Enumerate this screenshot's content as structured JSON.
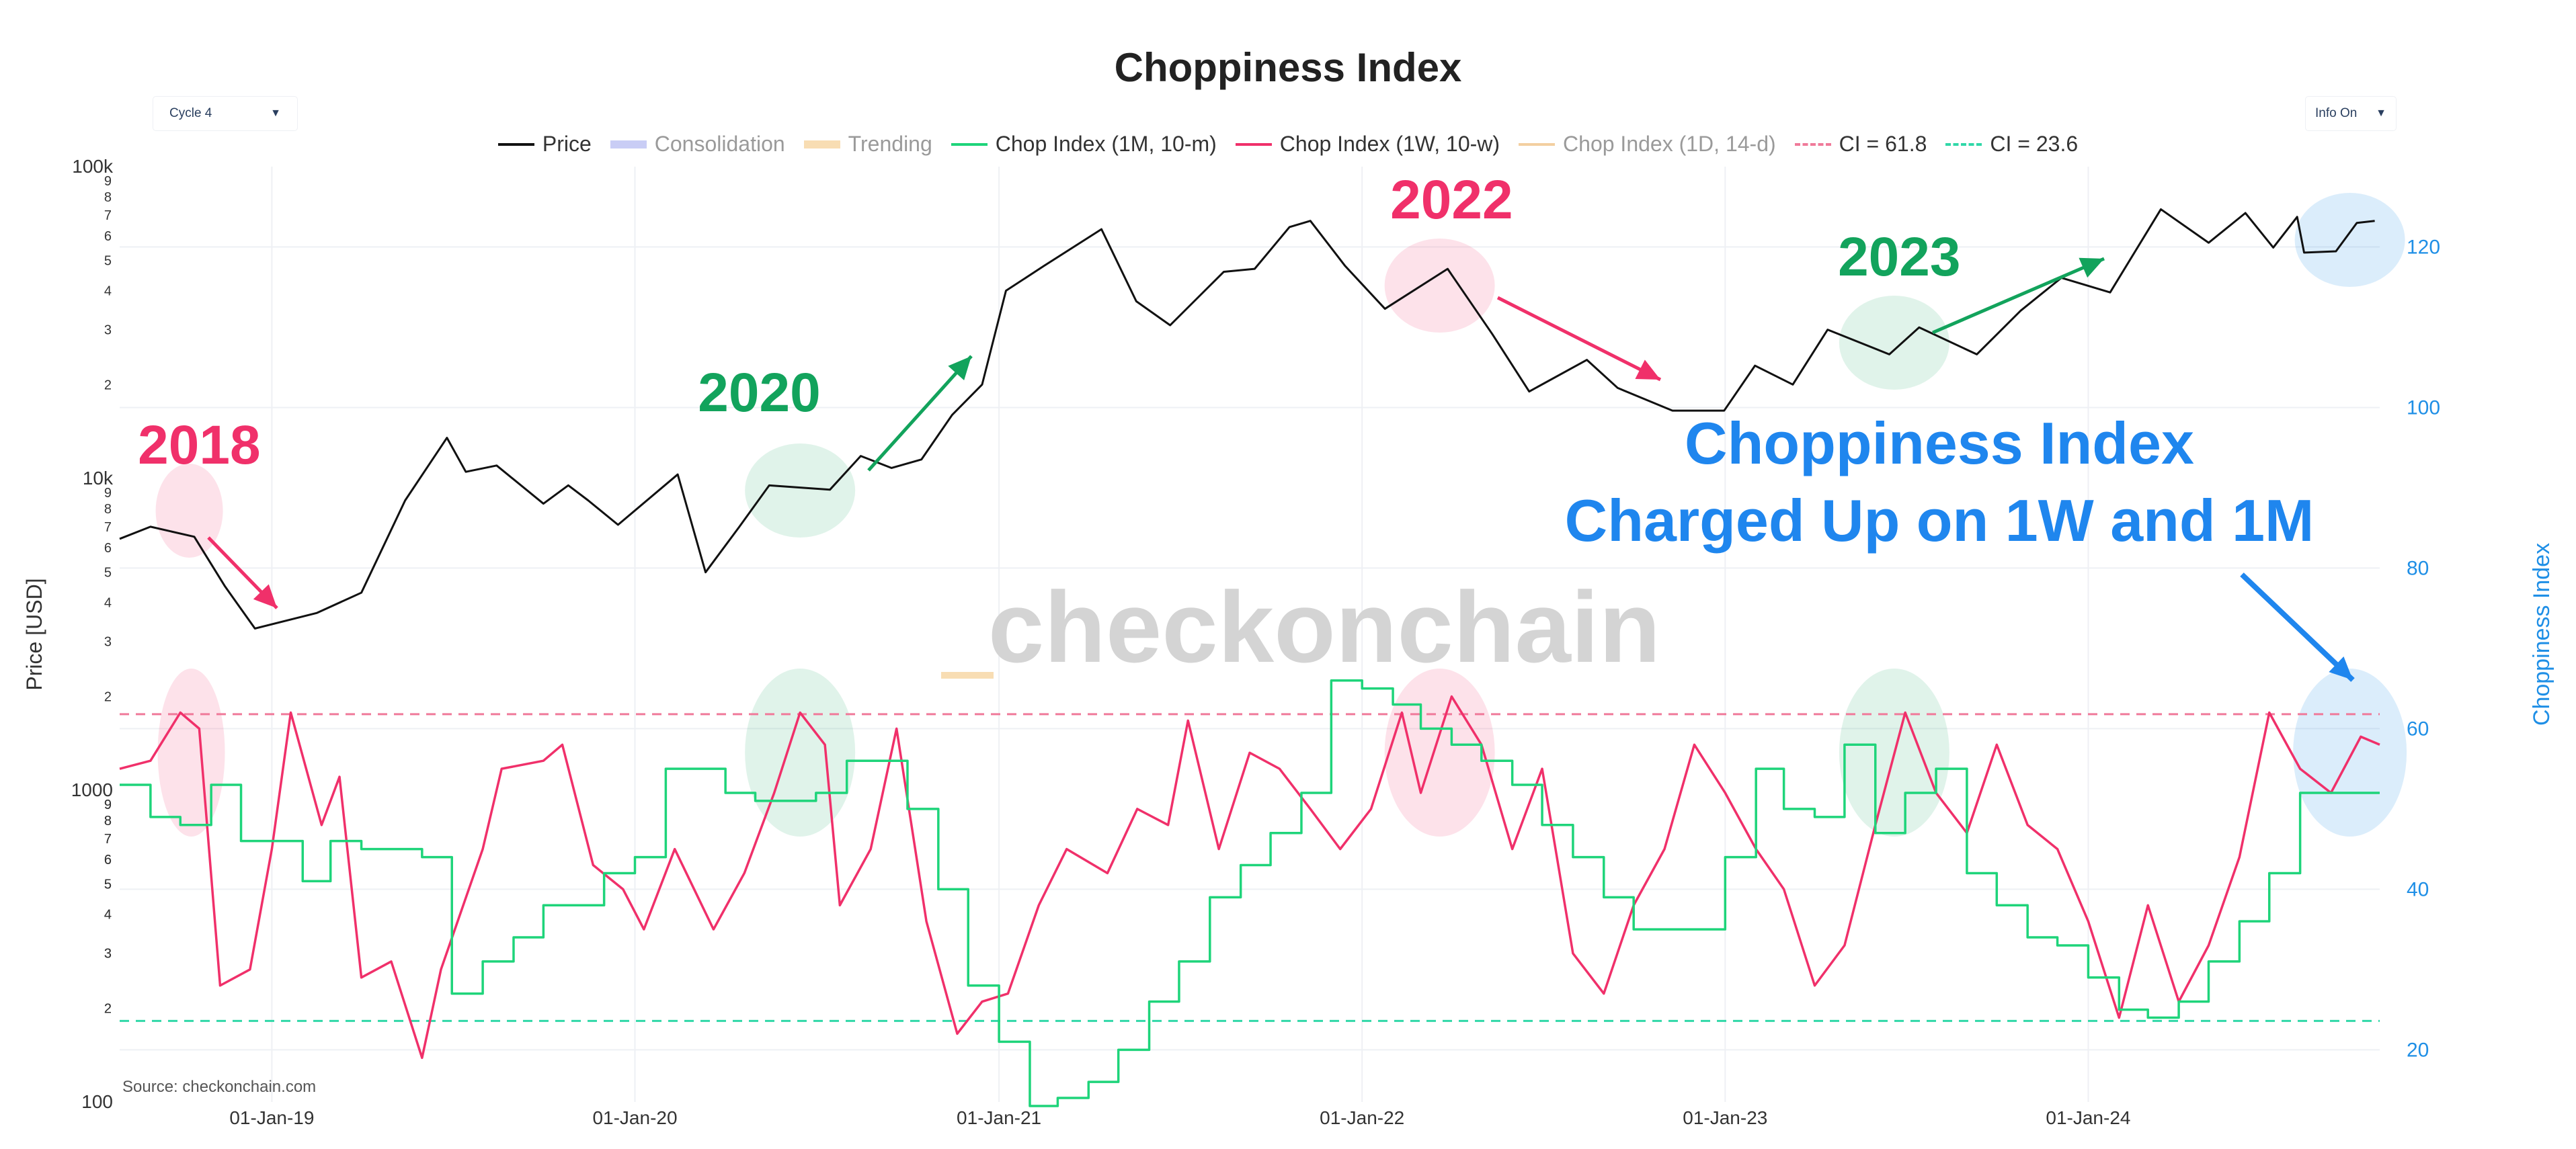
{
  "title": "Choppiness Index",
  "dropdowns": {
    "cycle": {
      "value": "Cycle 4"
    },
    "info": {
      "value": "Info On"
    }
  },
  "legend": [
    {
      "label": "Price",
      "color": "#111111",
      "style": "line",
      "muted": false
    },
    {
      "label": "Consolidation",
      "color": "#c9cdf5",
      "style": "band",
      "muted": true
    },
    {
      "label": "Trending",
      "color": "#f8ddb3",
      "style": "band",
      "muted": true
    },
    {
      "label": "Chop Index (1M, 10-m)",
      "color": "#1ed47a",
      "style": "line",
      "muted": false
    },
    {
      "label": "Chop Index (1W, 10-w)",
      "color": "#f0306a",
      "style": "line",
      "muted": false
    },
    {
      "label": "Chop Index (1D, 14-d)",
      "color": "#f3cfa0",
      "style": "line",
      "muted": true
    },
    {
      "label": "CI = 61.8",
      "color": "#f07a9a",
      "style": "dash",
      "muted": false
    },
    {
      "label": "CI = 23.6",
      "color": "#30d8a8",
      "style": "dash",
      "muted": false
    }
  ],
  "watermark": "checkonchain",
  "source": "Source: checkonchain.com",
  "annotations": {
    "callout_line1": "Choppiness Index",
    "callout_line2": "Charged Up on 1W and 1M",
    "years": [
      {
        "label": "2018",
        "color": "#f0306a"
      },
      {
        "label": "2020",
        "color": "#12a35c"
      },
      {
        "label": "2022",
        "color": "#f0306a"
      },
      {
        "label": "2023",
        "color": "#12a35c"
      }
    ]
  },
  "chart_data": {
    "type": "line",
    "title": "Choppiness Index",
    "x_axis": {
      "type": "date",
      "range": [
        "2018-08-01",
        "2024-10-20"
      ],
      "ticks": [
        "01-Jan-19",
        "01-Jan-20",
        "01-Jan-21",
        "01-Jan-22",
        "01-Jan-23",
        "01-Jan-24"
      ]
    },
    "y_left": {
      "label": "Price [USD]",
      "scale": "log",
      "range": [
        100,
        100000
      ],
      "ticks": [
        "100",
        "1000",
        "10k",
        "100k"
      ]
    },
    "y_right": {
      "label": "Choppiness Index",
      "scale": "linear",
      "range": [
        13.5,
        130
      ],
      "ticks": [
        20,
        40,
        60,
        80,
        100,
        120
      ],
      "color": "#1f8fe6"
    },
    "reference_lines": [
      {
        "name": "CI = 61.8",
        "value": 61.8
      },
      {
        "name": "CI = 23.6",
        "value": 23.6
      }
    ],
    "series": [
      {
        "name": "Price",
        "axis": "y_left",
        "points": [
          [
            "2018-08-01",
            6400
          ],
          [
            "2018-09-01",
            7000
          ],
          [
            "2018-10-15",
            6500
          ],
          [
            "2018-11-15",
            4500
          ],
          [
            "2018-12-15",
            3300
          ],
          [
            "2019-02-15",
            3700
          ],
          [
            "2019-04-01",
            4300
          ],
          [
            "2019-05-15",
            8500
          ],
          [
            "2019-06-26",
            13500
          ],
          [
            "2019-07-15",
            10500
          ],
          [
            "2019-08-15",
            11000
          ],
          [
            "2019-10-01",
            8300
          ],
          [
            "2019-10-26",
            9500
          ],
          [
            "2019-11-15",
            8500
          ],
          [
            "2019-12-15",
            7100
          ],
          [
            "2020-02-13",
            10300
          ],
          [
            "2020-03-12",
            5000
          ],
          [
            "2020-04-15",
            7000
          ],
          [
            "2020-05-15",
            9500
          ],
          [
            "2020-07-15",
            9200
          ],
          [
            "2020-08-15",
            11800
          ],
          [
            "2020-09-15",
            10800
          ],
          [
            "2020-10-15",
            11500
          ],
          [
            "2020-11-15",
            16000
          ],
          [
            "2020-12-15",
            20000
          ],
          [
            "2021-01-08",
            40000
          ],
          [
            "2021-02-15",
            48000
          ],
          [
            "2021-04-14",
            63000
          ],
          [
            "2021-05-19",
            37000
          ],
          [
            "2021-06-22",
            31000
          ],
          [
            "2021-08-15",
            46000
          ],
          [
            "2021-09-15",
            47000
          ],
          [
            "2021-10-20",
            64000
          ],
          [
            "2021-11-10",
            67000
          ],
          [
            "2021-12-15",
            48000
          ],
          [
            "2022-01-24",
            35000
          ],
          [
            "2022-03-28",
            47000
          ],
          [
            "2022-05-12",
            29000
          ],
          [
            "2022-06-18",
            19000
          ],
          [
            "2022-08-15",
            24000
          ],
          [
            "2022-09-15",
            19500
          ],
          [
            "2022-11-09",
            16500
          ],
          [
            "2022-12-31",
            16500
          ],
          [
            "2023-01-31",
            23000
          ],
          [
            "2023-03-10",
            20000
          ],
          [
            "2023-04-14",
            30000
          ],
          [
            "2023-06-15",
            25000
          ],
          [
            "2023-07-15",
            30500
          ],
          [
            "2023-09-11",
            25000
          ],
          [
            "2023-10-25",
            34500
          ],
          [
            "2023-12-05",
            44000
          ],
          [
            "2024-01-23",
            39500
          ],
          [
            "2024-03-14",
            73000
          ],
          [
            "2024-05-01",
            57000
          ],
          [
            "2024-06-07",
            71000
          ],
          [
            "2024-07-05",
            55000
          ],
          [
            "2024-07-29",
            69000
          ],
          [
            "2024-08-05",
            53000
          ],
          [
            "2024-09-06",
            53500
          ],
          [
            "2024-09-27",
            66000
          ],
          [
            "2024-10-15",
            67000
          ]
        ]
      },
      {
        "name": "Chop Index (1W, 10-w)",
        "axis": "y_right",
        "points": [
          [
            "2018-08-01",
            55
          ],
          [
            "2018-09-01",
            56
          ],
          [
            "2018-10-01",
            62
          ],
          [
            "2018-10-20",
            60
          ],
          [
            "2018-11-10",
            28
          ],
          [
            "2018-12-10",
            30
          ],
          [
            "2019-01-01",
            45
          ],
          [
            "2019-01-20",
            62
          ],
          [
            "2019-02-20",
            48
          ],
          [
            "2019-03-10",
            54
          ],
          [
            "2019-04-01",
            29
          ],
          [
            "2019-05-01",
            31
          ],
          [
            "2019-06-01",
            19
          ],
          [
            "2019-06-20",
            30
          ],
          [
            "2019-08-01",
            45
          ],
          [
            "2019-08-20",
            55
          ],
          [
            "2019-10-01",
            56
          ],
          [
            "2019-10-20",
            58
          ],
          [
            "2019-11-20",
            43
          ],
          [
            "2019-12-20",
            40
          ],
          [
            "2020-01-10",
            35
          ],
          [
            "2020-02-10",
            45
          ],
          [
            "2020-03-20",
            35
          ],
          [
            "2020-04-20",
            42
          ],
          [
            "2020-05-20",
            52
          ],
          [
            "2020-06-15",
            62
          ],
          [
            "2020-07-10",
            58
          ],
          [
            "2020-07-25",
            38
          ],
          [
            "2020-08-25",
            45
          ],
          [
            "2020-09-20",
            60
          ],
          [
            "2020-10-20",
            36
          ],
          [
            "2020-11-20",
            22
          ],
          [
            "2020-12-15",
            26
          ],
          [
            "2021-01-10",
            27
          ],
          [
            "2021-02-10",
            38
          ],
          [
            "2021-03-10",
            45
          ],
          [
            "2021-04-20",
            42
          ],
          [
            "2021-05-20",
            50
          ],
          [
            "2021-06-20",
            48
          ],
          [
            "2021-07-10",
            61
          ],
          [
            "2021-08-10",
            45
          ],
          [
            "2021-09-10",
            57
          ],
          [
            "2021-10-10",
            55
          ],
          [
            "2021-11-10",
            50
          ],
          [
            "2021-12-10",
            45
          ],
          [
            "2022-01-10",
            50
          ],
          [
            "2022-02-10",
            62
          ],
          [
            "2022-03-01",
            52
          ],
          [
            "2022-04-01",
            64
          ],
          [
            "2022-05-01",
            58
          ],
          [
            "2022-06-01",
            45
          ],
          [
            "2022-07-01",
            55
          ],
          [
            "2022-08-01",
            32
          ],
          [
            "2022-09-01",
            27
          ],
          [
            "2022-10-01",
            38
          ],
          [
            "2022-11-01",
            45
          ],
          [
            "2022-12-01",
            58
          ],
          [
            "2023-01-01",
            52
          ],
          [
            "2023-02-01",
            45
          ],
          [
            "2023-03-01",
            40
          ],
          [
            "2023-04-01",
            28
          ],
          [
            "2023-05-01",
            33
          ],
          [
            "2023-06-01",
            48
          ],
          [
            "2023-07-01",
            62
          ],
          [
            "2023-08-01",
            52
          ],
          [
            "2023-09-01",
            47
          ],
          [
            "2023-10-01",
            58
          ],
          [
            "2023-11-01",
            48
          ],
          [
            "2023-12-01",
            45
          ],
          [
            "2024-01-01",
            36
          ],
          [
            "2024-02-01",
            24
          ],
          [
            "2024-03-01",
            38
          ],
          [
            "2024-04-01",
            26
          ],
          [
            "2024-05-01",
            33
          ],
          [
            "2024-06-01",
            44
          ],
          [
            "2024-07-01",
            62
          ],
          [
            "2024-08-01",
            55
          ],
          [
            "2024-09-01",
            52
          ],
          [
            "2024-10-01",
            59
          ],
          [
            "2024-10-20",
            58
          ]
        ]
      },
      {
        "name": "Chop Index (1M, 10-m)",
        "axis": "y_right",
        "points": [
          [
            "2018-08-01",
            53
          ],
          [
            "2018-09-01",
            49
          ],
          [
            "2018-10-01",
            48
          ],
          [
            "2018-11-01",
            53
          ],
          [
            "2018-12-01",
            46
          ],
          [
            "2019-01-01",
            46
          ],
          [
            "2019-02-01",
            41
          ],
          [
            "2019-03-01",
            46
          ],
          [
            "2019-04-01",
            45
          ],
          [
            "2019-05-01",
            45
          ],
          [
            "2019-06-01",
            44
          ],
          [
            "2019-07-01",
            27
          ],
          [
            "2019-08-01",
            31
          ],
          [
            "2019-09-01",
            34
          ],
          [
            "2019-10-01",
            38
          ],
          [
            "2019-11-01",
            38
          ],
          [
            "2019-12-01",
            42
          ],
          [
            "2020-01-01",
            44
          ],
          [
            "2020-02-01",
            55
          ],
          [
            "2020-03-01",
            55
          ],
          [
            "2020-04-01",
            52
          ],
          [
            "2020-05-01",
            51
          ],
          [
            "2020-06-01",
            51
          ],
          [
            "2020-07-01",
            52
          ],
          [
            "2020-08-01",
            56
          ],
          [
            "2020-09-01",
            56
          ],
          [
            "2020-10-01",
            50
          ],
          [
            "2020-11-01",
            40
          ],
          [
            "2020-12-01",
            28
          ],
          [
            "2021-01-01",
            21
          ],
          [
            "2021-02-01",
            13
          ],
          [
            "2021-03-01",
            14
          ],
          [
            "2021-04-01",
            16
          ],
          [
            "2021-05-01",
            20
          ],
          [
            "2021-06-01",
            26
          ],
          [
            "2021-07-01",
            31
          ],
          [
            "2021-08-01",
            39
          ],
          [
            "2021-09-01",
            43
          ],
          [
            "2021-10-01",
            47
          ],
          [
            "2021-11-01",
            52
          ],
          [
            "2021-12-01",
            66
          ],
          [
            "2022-01-01",
            65
          ],
          [
            "2022-02-01",
            63
          ],
          [
            "2022-03-01",
            60
          ],
          [
            "2022-04-01",
            58
          ],
          [
            "2022-05-01",
            56
          ],
          [
            "2022-06-01",
            53
          ],
          [
            "2022-07-01",
            48
          ],
          [
            "2022-08-01",
            44
          ],
          [
            "2022-09-01",
            39
          ],
          [
            "2022-10-01",
            35
          ],
          [
            "2022-11-01",
            35
          ],
          [
            "2022-12-01",
            35
          ],
          [
            "2023-01-01",
            44
          ],
          [
            "2023-02-01",
            55
          ],
          [
            "2023-03-01",
            50
          ],
          [
            "2023-04-01",
            49
          ],
          [
            "2023-05-01",
            58
          ],
          [
            "2023-06-01",
            47
          ],
          [
            "2023-07-01",
            52
          ],
          [
            "2023-08-01",
            55
          ],
          [
            "2023-09-01",
            42
          ],
          [
            "2023-10-01",
            38
          ],
          [
            "2023-11-01",
            34
          ],
          [
            "2023-12-01",
            33
          ],
          [
            "2024-01-01",
            29
          ],
          [
            "2024-02-01",
            25
          ],
          [
            "2024-03-01",
            24
          ],
          [
            "2024-04-01",
            26
          ],
          [
            "2024-05-01",
            31
          ],
          [
            "2024-06-01",
            36
          ],
          [
            "2024-07-01",
            42
          ],
          [
            "2024-08-01",
            52
          ],
          [
            "2024-09-01",
            52
          ],
          [
            "2024-10-01",
            52
          ]
        ]
      }
    ]
  }
}
